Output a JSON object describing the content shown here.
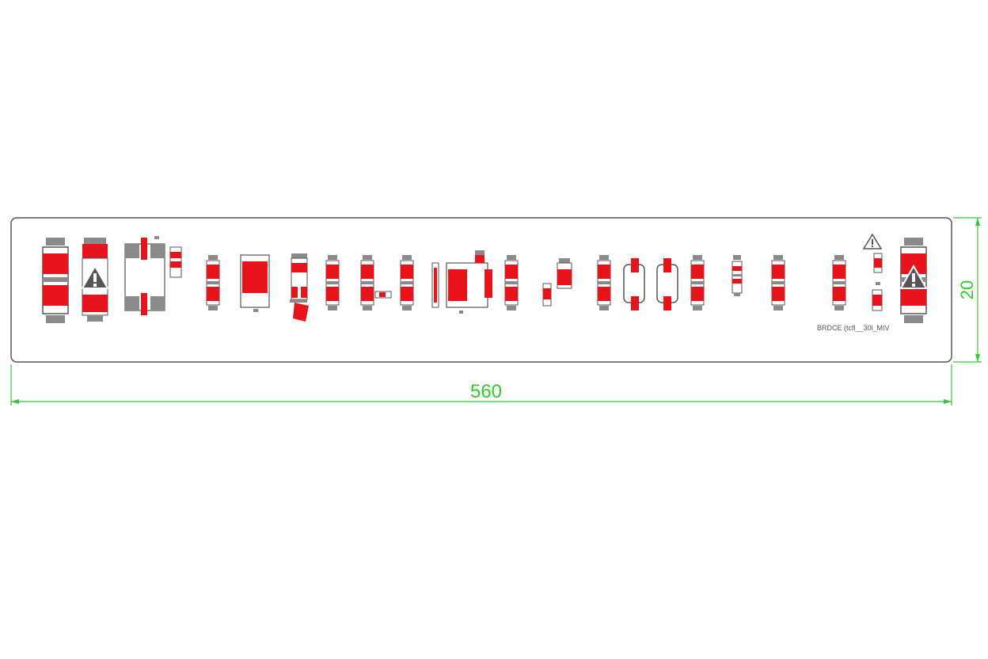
{
  "panel": {
    "label": "BRDCE (tcfl__30l_MIV",
    "colors": {
      "outline": "#555555",
      "fill": "#ffffff"
    }
  },
  "dimensions": {
    "width_label": "560",
    "height_label": "20",
    "color": "#2ecc2e"
  },
  "colors": {
    "red": "#e8141b",
    "grey": "#8a8a8a",
    "dark_grey": "#555555"
  },
  "warning_icons": [
    "warning-triangle-icon",
    "warning-triangle-icon",
    "warning-triangle-icon"
  ]
}
